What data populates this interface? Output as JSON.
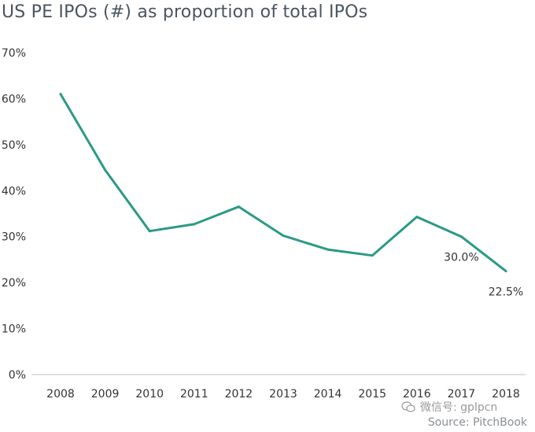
{
  "title": "US PE IPOs (#) as proportion of total IPOs",
  "watermark": "微信号: gplpcn",
  "source": "Source: PitchBook",
  "colors": {
    "line": "#2a9a86",
    "axis": "#bfbfbf",
    "text": "#333333",
    "title": "#4a5560"
  },
  "chart_data": {
    "type": "line",
    "title": "US PE IPOs (#) as proportion of total IPOs",
    "categories": [
      "2008",
      "2009",
      "2010",
      "2011",
      "2012",
      "2013",
      "2014",
      "2015",
      "2016",
      "2017",
      "2018"
    ],
    "series": [
      {
        "values": [
          61.0,
          44.5,
          31.2,
          32.7,
          36.5,
          30.2,
          27.2,
          25.9,
          34.3,
          30.0,
          22.5
        ]
      }
    ],
    "ylim": [
      0,
      70
    ],
    "yticks": [
      0,
      10,
      20,
      30,
      40,
      50,
      60,
      70
    ],
    "ytick_labels": [
      "0%",
      "10%",
      "20%",
      "30%",
      "40%",
      "50%",
      "60%",
      "70%"
    ],
    "data_labels": [
      {
        "category": "2017",
        "text": "30.0%"
      },
      {
        "category": "2018",
        "text": "22.5%"
      }
    ],
    "grid": false,
    "legend": "none"
  }
}
